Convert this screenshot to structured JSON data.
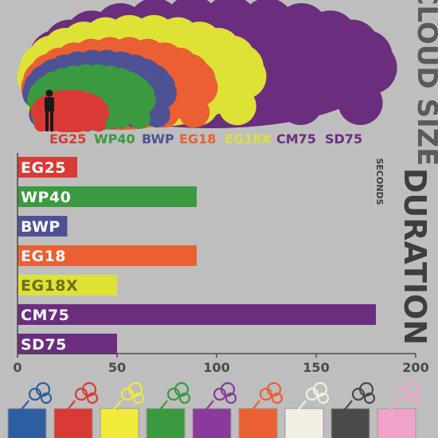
{
  "chart_data": {
    "type": "bar",
    "orientation": "horizontal",
    "cloud_title": "CLOUD SIZE",
    "title": "DURATION",
    "unit_label": "SECONDS",
    "categories": [
      "EG25",
      "WP40",
      "BWP",
      "EG18",
      "EG18X",
      "CM75",
      "SD75"
    ],
    "values": [
      30,
      90,
      25,
      90,
      50,
      180,
      50
    ],
    "xlim": [
      0,
      200
    ],
    "ticks": [
      0,
      50,
      100,
      150,
      200
    ],
    "bar_colors": [
      "#d93a36",
      "#3a9a3f",
      "#4e5294",
      "#ea6032",
      "#dde235",
      "#6b2d7e",
      "#6b2d7e"
    ],
    "label_colors": [
      "#ffffff",
      "#ffffff",
      "#ffffff",
      "#ffffff",
      "#6b6e1c",
      "#ffffff",
      "#ffffff"
    ],
    "legend": [
      "EG25",
      "WP40",
      "BWP",
      "EG18",
      "EG18X",
      "CM75",
      "SD75"
    ],
    "legend_colors": [
      "#d93a36",
      "#3a9a3f",
      "#4e5294",
      "#ea6032",
      "#dde235",
      "#6b2d7e",
      "#6b2d7e"
    ],
    "cloud_colors": [
      "#6b2d7e",
      "#dde235",
      "#ea6032",
      "#4e5294",
      "#3a9a3f",
      "#d93a36"
    ],
    "grid": false
  },
  "footer": {
    "swatch_colors": [
      "#2d5fa0",
      "#d93a36",
      "#f0ea3a",
      "#3a9a3f",
      "#8a3a9a",
      "#ea6032",
      "#f2f0e2",
      "#4a4a4a",
      "#f0a3c8"
    ],
    "puff_colors": [
      "#2d5fa0",
      "#d93a36",
      "#f0ea3a",
      "#3a9a3f",
      "#8a3a9a",
      "#ea6032",
      "#f2f0e2",
      "#4a4a4a",
      "#f0a3c8"
    ]
  }
}
